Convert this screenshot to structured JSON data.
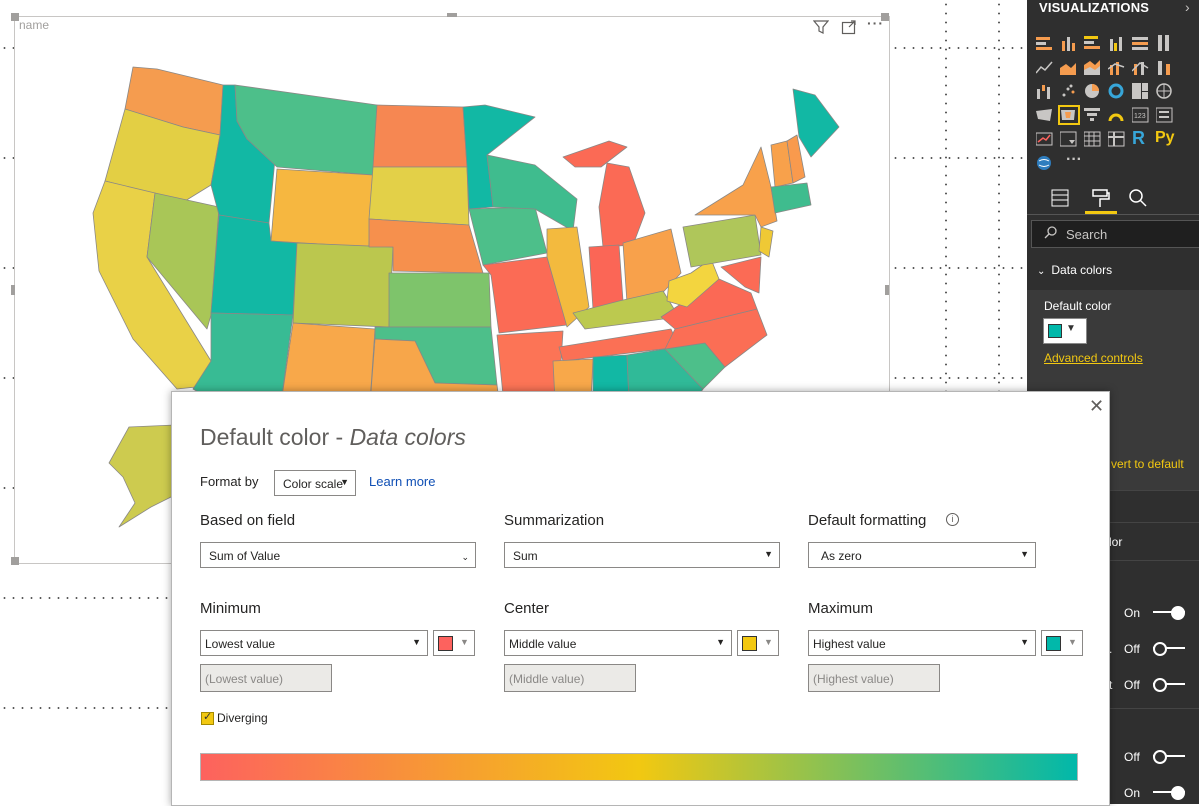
{
  "visual": {
    "name": "name",
    "filter_icon": "filter-icon",
    "focus_icon": "focus-mode-icon",
    "more_icon": "more-options-icon",
    "more_glyph": "···"
  },
  "pane": {
    "title": "VISUALIZATIONS",
    "search_placeholder": "Search",
    "section_title": "Data colors",
    "default_color_label": "Default color",
    "default_color_value": "#01B8AA",
    "advanced_controls": "Advanced controls",
    "revert": "vert to default",
    "partial_label_color": "lor",
    "toggles": [
      {
        "label": "On",
        "prefix": ""
      },
      {
        "label": "Off",
        "prefix": "."
      },
      {
        "label": "Off",
        "prefix": "t"
      },
      {
        "label": "Off",
        "prefix": ""
      },
      {
        "label": "On",
        "prefix": ""
      }
    ],
    "viz_text_icons": [
      "R",
      "Py"
    ],
    "more_glyph": "···"
  },
  "dialog": {
    "title_main": "Default color - ",
    "title_sub": "Data colors",
    "format_by_label": "Format by",
    "format_by_value": "Color scale",
    "learn_more": "Learn more",
    "based_on_field_label": "Based on field",
    "based_on_field_value": "Sum of Value",
    "summarization_label": "Summarization",
    "summarization_value": "Sum",
    "default_formatting_label": "Default formatting",
    "default_formatting_value": "As zero",
    "minimum": {
      "label": "Minimum",
      "value": "Lowest value",
      "placeholder": "(Lowest value)",
      "color": "#FD625E"
    },
    "center": {
      "label": "Center",
      "value": "Middle value",
      "placeholder": "(Middle value)",
      "color": "#F2C811"
    },
    "maximum": {
      "label": "Maximum",
      "value": "Highest value",
      "placeholder": "(Highest value)",
      "color": "#01B8AA"
    },
    "diverging_label": "Diverging",
    "diverging_checked": true
  }
}
